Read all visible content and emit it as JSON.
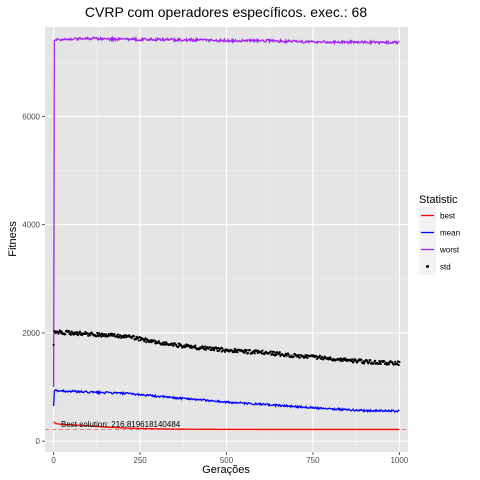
{
  "chart_data": {
    "type": "line",
    "title": "CVRP com operadores específicos. exec.: 68",
    "xlabel": "Gerações",
    "ylabel": "Fitness",
    "xlim": [
      -25,
      1025
    ],
    "ylim": [
      -200,
      7650
    ],
    "x_ticks": [
      0,
      250,
      500,
      750,
      1000
    ],
    "y_ticks": [
      0,
      2000,
      4000,
      6000
    ],
    "grid": true,
    "background": "#e5e5e5",
    "legend": {
      "title": "Statistic",
      "placement": "right",
      "entries": [
        {
          "label": "best",
          "color": "#ff0000",
          "kind": "line"
        },
        {
          "label": "mean",
          "color": "#0000ff",
          "kind": "line"
        },
        {
          "label": "worst",
          "color": "#a020f0",
          "kind": "line"
        },
        {
          "label": "std",
          "color": "#000000",
          "kind": "point"
        }
      ]
    },
    "reference_line": {
      "y": 216.819618140484,
      "color": "#ff0000",
      "style": "dashed"
    },
    "annotation": "Best solution: 216.819618140484",
    "series": [
      {
        "name": "best",
        "color": "#ff0000",
        "x": [
          0,
          5,
          10,
          25,
          50,
          100,
          150,
          200,
          250,
          300,
          350,
          400,
          500,
          600,
          700,
          800,
          900,
          1000
        ],
        "y": [
          360,
          330,
          320,
          310,
          300,
          285,
          260,
          245,
          235,
          228,
          222,
          220,
          218,
          217,
          217,
          217,
          217,
          217
        ]
      },
      {
        "name": "mean",
        "color": "#0000ff",
        "x": [
          0,
          2,
          5,
          50,
          100,
          150,
          200,
          250,
          300,
          350,
          400,
          450,
          500,
          550,
          600,
          650,
          700,
          750,
          800,
          850,
          900,
          950,
          1000
        ],
        "y": [
          650,
          930,
          935,
          920,
          905,
          895,
          885,
          860,
          830,
          800,
          780,
          750,
          720,
          700,
          680,
          660,
          640,
          620,
          600,
          580,
          565,
          560,
          555
        ]
      },
      {
        "name": "worst",
        "color": "#a020f0",
        "x": [
          0,
          2,
          5,
          100,
          200,
          300,
          400,
          500,
          600,
          700,
          800,
          900,
          1000
        ],
        "y": [
          1000,
          7400,
          7420,
          7440,
          7420,
          7420,
          7410,
          7400,
          7400,
          7380,
          7370,
          7370,
          7360
        ]
      },
      {
        "name": "std",
        "color": "#000000",
        "x": [
          0,
          2,
          5,
          50,
          100,
          150,
          200,
          250,
          300,
          350,
          400,
          450,
          500,
          550,
          600,
          650,
          700,
          750,
          800,
          850,
          900,
          950,
          1000
        ],
        "y": [
          1800,
          2000,
          2020,
          2000,
          1980,
          1960,
          1940,
          1890,
          1820,
          1780,
          1740,
          1710,
          1680,
          1660,
          1640,
          1610,
          1580,
          1560,
          1530,
          1500,
          1470,
          1450,
          1440
        ]
      }
    ]
  }
}
